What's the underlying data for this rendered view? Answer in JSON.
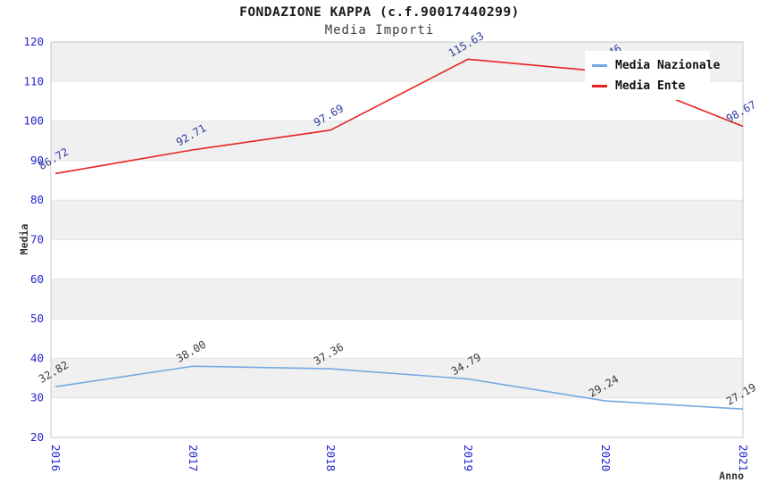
{
  "header": {
    "title": "FONDAZIONE KAPPA (c.f.90017440299)",
    "subtitle": "Media Importi"
  },
  "chart_data": {
    "type": "line",
    "x": [
      "2016",
      "2017",
      "2018",
      "2019",
      "2020",
      "2021"
    ],
    "series": [
      {
        "name": "Media Nazionale",
        "color": "#74a9e0",
        "label_color": "#3a3a3a",
        "values": [
          32.82,
          38.0,
          37.36,
          34.79,
          29.24,
          27.19
        ]
      },
      {
        "name": "Media Ente",
        "color": "#e62222",
        "label_color": "#2e3b9b",
        "values": [
          86.72,
          92.71,
          97.69,
          115.63,
          112.46,
          98.67
        ]
      }
    ],
    "xlabel": "Anno",
    "ylabel": "Media",
    "ylim": [
      20,
      120
    ],
    "yticks": [
      20,
      30,
      40,
      50,
      60,
      70,
      80,
      90,
      100,
      110,
      120
    ],
    "grid": "alternating-horizontal-bands",
    "legend_position": "top-right",
    "value_label_format": "0.00"
  },
  "colors": {
    "tick_label": "#2323cd",
    "title": "#1a1a1a",
    "subtitle": "#3d3d3d",
    "axis_label": "#333333",
    "band": "#f0f0f0",
    "grid_line": "#e4e4e4",
    "frame": "#c9c9c9",
    "background": "#ffffff",
    "legend_background": "#ffffff"
  }
}
